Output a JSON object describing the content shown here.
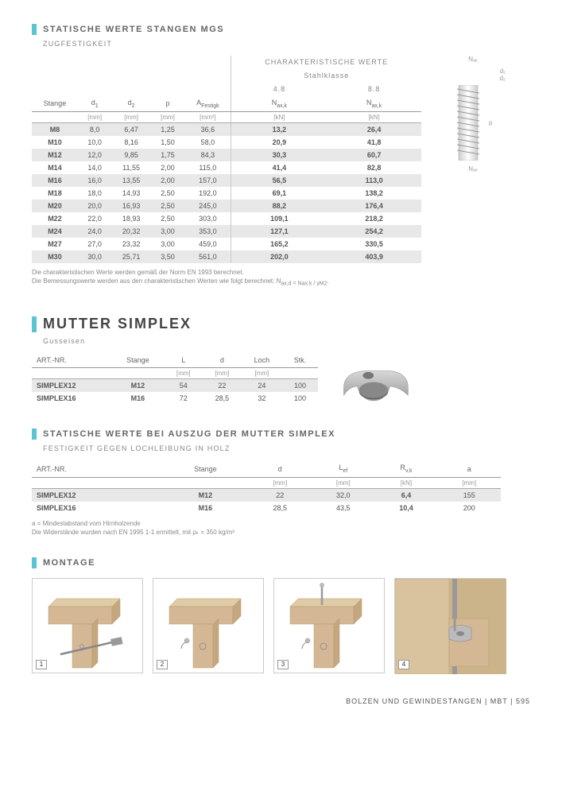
{
  "section1": {
    "title": "STATISCHE WERTE STANGEN MGS",
    "subtitle": "ZUGFESTIGKEIT",
    "superheader": "CHARAKTERISTISCHE WERTE",
    "subheader": "Stahlklasse",
    "col_4_8": "4.8",
    "col_8_8": "8.8",
    "headers": {
      "stange": "Stange",
      "d1": "d₁",
      "d2": "d₂",
      "p": "p",
      "a_festigk": "A",
      "a_sub": "Festigk",
      "naxk": "N",
      "naxk_sub": "ax,k"
    },
    "units": {
      "d1": "[mm]",
      "d2": "[mm]",
      "p": "[mm]",
      "a": "[mm²]",
      "n": "[kN]"
    },
    "rows": [
      {
        "stange": "M8",
        "d1": "8,0",
        "d2": "6,47",
        "p": "1,25",
        "a": "36,6",
        "n48": "13,2",
        "n88": "26,4"
      },
      {
        "stange": "M10",
        "d1": "10,0",
        "d2": "8,16",
        "p": "1,50",
        "a": "58,0",
        "n48": "20,9",
        "n88": "41,8"
      },
      {
        "stange": "M12",
        "d1": "12,0",
        "d2": "9,85",
        "p": "1,75",
        "a": "84,3",
        "n48": "30,3",
        "n88": "60,7"
      },
      {
        "stange": "M14",
        "d1": "14,0",
        "d2": "11,55",
        "p": "2,00",
        "a": "115,0",
        "n48": "41,4",
        "n88": "82,8"
      },
      {
        "stange": "M16",
        "d1": "16,0",
        "d2": "13,55",
        "p": "2,00",
        "a": "157,0",
        "n48": "56,5",
        "n88": "113,0"
      },
      {
        "stange": "M18",
        "d1": "18,0",
        "d2": "14,93",
        "p": "2,50",
        "a": "192,0",
        "n48": "69,1",
        "n88": "138,2"
      },
      {
        "stange": "M20",
        "d1": "20,0",
        "d2": "16,93",
        "p": "2,50",
        "a": "245,0",
        "n48": "88,2",
        "n88": "176,4"
      },
      {
        "stange": "M22",
        "d1": "22,0",
        "d2": "18,93",
        "p": "2,50",
        "a": "303,0",
        "n48": "109,1",
        "n88": "218,2"
      },
      {
        "stange": "M24",
        "d1": "24,0",
        "d2": "20,32",
        "p": "3,00",
        "a": "353,0",
        "n48": "127,1",
        "n88": "254,2"
      },
      {
        "stange": "M27",
        "d1": "27,0",
        "d2": "23,32",
        "p": "3,00",
        "a": "459,0",
        "n48": "165,2",
        "n88": "330,5"
      },
      {
        "stange": "M30",
        "d1": "30,0",
        "d2": "25,71",
        "p": "3,50",
        "a": "561,0",
        "n48": "202,0",
        "n88": "403,9"
      }
    ],
    "footnote1": "Die charakteristischen Werte werden gemäß der Norm EN 1993 berechnet.",
    "footnote2": "Die Bemessungswerte werden aus den charakteristischen Werten wie folgt berechnet: N",
    "footnote2_formula": "ax,d = Nax,k / γM2",
    "diagram": {
      "nax_top": "Nₐₓ",
      "d1": "d₁",
      "d2": "d₂",
      "p": "p",
      "nax_bot": "Nₐₓ"
    }
  },
  "section2": {
    "title": "MUTTER SIMPLEX",
    "subtitle": "Gusseisen",
    "headers": {
      "artnr": "ART.-NR.",
      "stange": "Stange",
      "l": "L",
      "d": "d",
      "loch": "Loch",
      "stk": "Stk."
    },
    "units": {
      "l": "[mm]",
      "d": "[mm]",
      "loch": "[mm]"
    },
    "rows": [
      {
        "artnr": "SIMPLEX12",
        "stange": "M12",
        "l": "54",
        "d": "22",
        "loch": "24",
        "stk": "100"
      },
      {
        "artnr": "SIMPLEX16",
        "stange": "M16",
        "l": "72",
        "d": "28,5",
        "loch": "32",
        "stk": "100"
      }
    ]
  },
  "section3": {
    "title": "STATISCHE WERTE BEI AUSZUG DER MUTTER SIMPLEX",
    "subtitle": "FESTIGKEIT GEGEN LOCHLEIBUNG IN HOLZ",
    "headers": {
      "artnr": "ART.-NR.",
      "stange": "Stange",
      "d": "d",
      "lef": "L",
      "lef_sub": "ef",
      "rvk": "R",
      "rvk_sub": "v,k",
      "a": "a"
    },
    "units": {
      "d": "[mm]",
      "lef": "[mm]",
      "rvk": "[kN]",
      "a": "[mm]"
    },
    "rows": [
      {
        "artnr": "SIMPLEX12",
        "stange": "M12",
        "d": "22",
        "lef": "32,0",
        "rvk": "6,4",
        "a": "155"
      },
      {
        "artnr": "SIMPLEX16",
        "stange": "M16",
        "d": "28,5",
        "lef": "43,5",
        "rvk": "10,4",
        "a": "200"
      }
    ],
    "footnote1": "a = Mindestabstand vom Hirnholzende",
    "footnote2": "Die Widerstände wurden nach EN 1995 1-1 ermittelt, mit ρₖ = 350 kg/m³"
  },
  "section4": {
    "title": "MONTAGE",
    "steps": [
      "1",
      "2",
      "3",
      "4"
    ]
  },
  "footer": {
    "text": "BOLZEN UND GEWINDESTANGEN | MBT | 595"
  },
  "colors": {
    "accent": "#5bc4d4",
    "wood": "#d4b896",
    "wood_side": "#c4a77e",
    "grey": "#888",
    "metal": "#b0b0b0"
  }
}
